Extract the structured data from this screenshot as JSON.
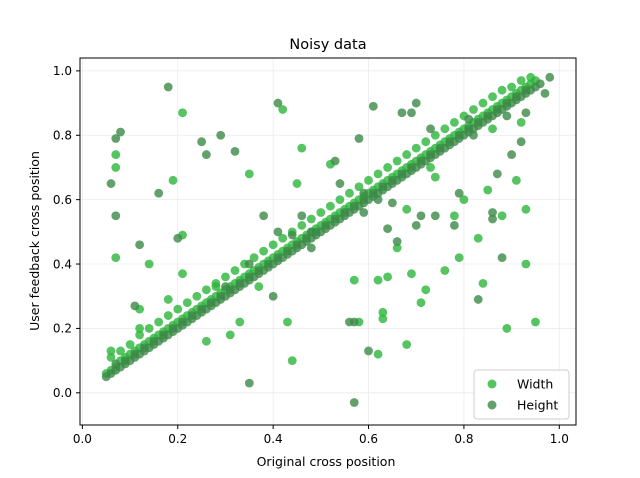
{
  "chart_data": {
    "type": "scatter",
    "title": "Noisy data",
    "xlabel": "Original cross position",
    "ylabel": "User feedback cross position",
    "xlim": [
      -0.005,
      1.035
    ],
    "ylim": [
      -0.1,
      1.04
    ],
    "xticks": [
      0.0,
      0.2,
      0.4,
      0.6,
      0.8,
      1.0
    ],
    "yticks": [
      0.0,
      0.2,
      0.4,
      0.6,
      0.8,
      1.0
    ],
    "xtick_labels": [
      "0.0",
      "0.2",
      "0.4",
      "0.6",
      "0.8",
      "1.0"
    ],
    "ytick_labels": [
      "0.0",
      "0.2",
      "0.4",
      "0.6",
      "0.8",
      "1.0"
    ],
    "grid": true,
    "legend_position": "lower-right",
    "series": [
      {
        "name": "Width",
        "color": "#2ab53a",
        "x": [
          0.05,
          0.06,
          0.07,
          0.08,
          0.09,
          0.1,
          0.11,
          0.12,
          0.13,
          0.14,
          0.15,
          0.16,
          0.17,
          0.18,
          0.19,
          0.2,
          0.21,
          0.22,
          0.23,
          0.24,
          0.25,
          0.26,
          0.27,
          0.28,
          0.29,
          0.3,
          0.31,
          0.32,
          0.33,
          0.34,
          0.35,
          0.36,
          0.37,
          0.38,
          0.39,
          0.4,
          0.41,
          0.42,
          0.43,
          0.44,
          0.45,
          0.46,
          0.47,
          0.48,
          0.49,
          0.5,
          0.51,
          0.52,
          0.53,
          0.54,
          0.55,
          0.56,
          0.57,
          0.58,
          0.59,
          0.6,
          0.61,
          0.62,
          0.63,
          0.64,
          0.65,
          0.66,
          0.67,
          0.68,
          0.69,
          0.7,
          0.71,
          0.72,
          0.73,
          0.74,
          0.75,
          0.76,
          0.77,
          0.78,
          0.79,
          0.8,
          0.81,
          0.82,
          0.83,
          0.84,
          0.85,
          0.86,
          0.87,
          0.88,
          0.89,
          0.9,
          0.91,
          0.92,
          0.93,
          0.94,
          0.95,
          0.06,
          0.08,
          0.1,
          0.12,
          0.14,
          0.16,
          0.18,
          0.2,
          0.22,
          0.24,
          0.26,
          0.28,
          0.3,
          0.32,
          0.34,
          0.36,
          0.38,
          0.4,
          0.42,
          0.44,
          0.46,
          0.48,
          0.5,
          0.52,
          0.54,
          0.56,
          0.58,
          0.6,
          0.62,
          0.64,
          0.66,
          0.68,
          0.7,
          0.72,
          0.74,
          0.76,
          0.78,
          0.8,
          0.82,
          0.84,
          0.86,
          0.88,
          0.9,
          0.92,
          0.94,
          0.07,
          0.21,
          0.07,
          0.19,
          0.42,
          0.46,
          0.35,
          0.07,
          0.14,
          0.18,
          0.33,
          0.44,
          0.21,
          0.28,
          0.43,
          0.31,
          0.12,
          0.06,
          0.21,
          0.26,
          0.37,
          0.12,
          0.45,
          0.52,
          0.62,
          0.66,
          0.71,
          0.76,
          0.79,
          0.83,
          0.88,
          0.84,
          0.89,
          0.93,
          0.91,
          0.95,
          0.93,
          0.58,
          0.57,
          0.62,
          0.68,
          0.72,
          0.64,
          0.69,
          0.63,
          0.63,
          0.68,
          0.78,
          0.8,
          0.73,
          0.74,
          0.86,
          0.92,
          0.85
        ],
        "y": [
          0.06,
          0.07,
          0.08,
          0.1,
          0.11,
          0.12,
          0.13,
          0.14,
          0.15,
          0.16,
          0.17,
          0.18,
          0.19,
          0.2,
          0.21,
          0.22,
          0.23,
          0.24,
          0.25,
          0.26,
          0.27,
          0.28,
          0.29,
          0.3,
          0.31,
          0.32,
          0.33,
          0.34,
          0.35,
          0.36,
          0.37,
          0.38,
          0.39,
          0.4,
          0.41,
          0.42,
          0.43,
          0.44,
          0.45,
          0.46,
          0.47,
          0.48,
          0.49,
          0.5,
          0.51,
          0.52,
          0.53,
          0.54,
          0.55,
          0.56,
          0.57,
          0.58,
          0.59,
          0.6,
          0.61,
          0.62,
          0.63,
          0.64,
          0.65,
          0.66,
          0.67,
          0.68,
          0.69,
          0.7,
          0.71,
          0.72,
          0.73,
          0.74,
          0.75,
          0.76,
          0.77,
          0.78,
          0.79,
          0.8,
          0.81,
          0.82,
          0.83,
          0.84,
          0.85,
          0.86,
          0.87,
          0.88,
          0.89,
          0.9,
          0.91,
          0.92,
          0.93,
          0.94,
          0.95,
          0.96,
          0.97,
          0.11,
          0.13,
          0.15,
          0.18,
          0.2,
          0.22,
          0.24,
          0.26,
          0.28,
          0.3,
          0.32,
          0.34,
          0.36,
          0.38,
          0.4,
          0.42,
          0.44,
          0.46,
          0.48,
          0.5,
          0.52,
          0.54,
          0.56,
          0.58,
          0.6,
          0.62,
          0.64,
          0.66,
          0.68,
          0.7,
          0.72,
          0.74,
          0.76,
          0.78,
          0.8,
          0.82,
          0.84,
          0.86,
          0.88,
          0.9,
          0.92,
          0.94,
          0.95,
          0.97,
          0.98,
          0.7,
          0.87,
          0.74,
          0.66,
          0.88,
          0.76,
          0.68,
          0.42,
          0.4,
          0.29,
          0.22,
          0.1,
          0.49,
          0.33,
          0.22,
          0.18,
          0.26,
          0.13,
          0.37,
          0.16,
          0.33,
          0.2,
          0.65,
          0.71,
          0.35,
          0.45,
          0.28,
          0.38,
          0.42,
          0.48,
          0.55,
          0.34,
          0.2,
          0.57,
          0.66,
          0.22,
          0.4,
          0.22,
          0.35,
          0.12,
          0.15,
          0.32,
          0.36,
          0.37,
          0.25,
          0.23,
          0.57,
          0.55,
          0.6,
          0.7,
          0.67,
          0.82,
          0.84,
          0.63
        ]
      },
      {
        "name": "Height",
        "color": "#3c8a47",
        "x": [
          0.05,
          0.06,
          0.07,
          0.08,
          0.09,
          0.1,
          0.11,
          0.12,
          0.13,
          0.14,
          0.15,
          0.16,
          0.17,
          0.18,
          0.19,
          0.2,
          0.21,
          0.22,
          0.23,
          0.24,
          0.25,
          0.26,
          0.27,
          0.28,
          0.29,
          0.3,
          0.31,
          0.32,
          0.33,
          0.34,
          0.35,
          0.36,
          0.37,
          0.38,
          0.39,
          0.4,
          0.41,
          0.42,
          0.43,
          0.44,
          0.45,
          0.46,
          0.47,
          0.48,
          0.49,
          0.5,
          0.51,
          0.52,
          0.53,
          0.54,
          0.55,
          0.56,
          0.57,
          0.58,
          0.59,
          0.6,
          0.61,
          0.62,
          0.63,
          0.64,
          0.65,
          0.66,
          0.67,
          0.68,
          0.69,
          0.7,
          0.71,
          0.72,
          0.73,
          0.74,
          0.75,
          0.76,
          0.77,
          0.78,
          0.79,
          0.8,
          0.81,
          0.82,
          0.83,
          0.84,
          0.85,
          0.86,
          0.87,
          0.88,
          0.89,
          0.9,
          0.91,
          0.92,
          0.93,
          0.94,
          0.95,
          0.07,
          0.09,
          0.11,
          0.13,
          0.15,
          0.17,
          0.19,
          0.21,
          0.23,
          0.25,
          0.27,
          0.29,
          0.31,
          0.33,
          0.35,
          0.37,
          0.39,
          0.41,
          0.43,
          0.45,
          0.47,
          0.49,
          0.51,
          0.53,
          0.55,
          0.57,
          0.59,
          0.61,
          0.63,
          0.65,
          0.67,
          0.69,
          0.71,
          0.73,
          0.75,
          0.77,
          0.79,
          0.81,
          0.83,
          0.85,
          0.87,
          0.89,
          0.91,
          0.93,
          0.06,
          0.07,
          0.08,
          0.07,
          0.11,
          0.12,
          0.16,
          0.18,
          0.2,
          0.25,
          0.26,
          0.29,
          0.32,
          0.35,
          0.38,
          0.41,
          0.44,
          0.48,
          0.53,
          0.56,
          0.57,
          0.57,
          0.58,
          0.59,
          0.61,
          0.6,
          0.62,
          0.64,
          0.65,
          0.66,
          0.67,
          0.69,
          0.7,
          0.71,
          0.73,
          0.74,
          0.78,
          0.79,
          0.81,
          0.82,
          0.83,
          0.86,
          0.87,
          0.88,
          0.9,
          0.93,
          0.96,
          0.98,
          0.97,
          0.7,
          0.89,
          0.92,
          0.3,
          0.41,
          0.4,
          0.59,
          0.86,
          0.48,
          0.54,
          0.46,
          0.35
        ],
        "y": [
          0.05,
          0.06,
          0.07,
          0.08,
          0.09,
          0.1,
          0.11,
          0.12,
          0.13,
          0.14,
          0.15,
          0.16,
          0.17,
          0.18,
          0.19,
          0.2,
          0.21,
          0.22,
          0.23,
          0.24,
          0.25,
          0.26,
          0.27,
          0.28,
          0.29,
          0.3,
          0.31,
          0.32,
          0.33,
          0.34,
          0.35,
          0.36,
          0.37,
          0.38,
          0.39,
          0.4,
          0.41,
          0.42,
          0.43,
          0.44,
          0.45,
          0.46,
          0.47,
          0.48,
          0.49,
          0.5,
          0.51,
          0.52,
          0.53,
          0.54,
          0.55,
          0.56,
          0.57,
          0.58,
          0.59,
          0.6,
          0.61,
          0.62,
          0.63,
          0.64,
          0.65,
          0.66,
          0.67,
          0.68,
          0.69,
          0.7,
          0.71,
          0.72,
          0.73,
          0.74,
          0.75,
          0.76,
          0.77,
          0.78,
          0.79,
          0.8,
          0.81,
          0.82,
          0.83,
          0.84,
          0.85,
          0.86,
          0.87,
          0.88,
          0.89,
          0.9,
          0.91,
          0.92,
          0.93,
          0.94,
          0.95,
          0.09,
          0.1,
          0.12,
          0.14,
          0.16,
          0.18,
          0.2,
          0.22,
          0.24,
          0.26,
          0.28,
          0.3,
          0.32,
          0.34,
          0.36,
          0.38,
          0.4,
          0.42,
          0.44,
          0.46,
          0.48,
          0.5,
          0.52,
          0.54,
          0.56,
          0.58,
          0.6,
          0.62,
          0.64,
          0.66,
          0.68,
          0.7,
          0.72,
          0.74,
          0.76,
          0.78,
          0.8,
          0.82,
          0.84,
          0.86,
          0.88,
          0.9,
          0.92,
          0.94,
          0.65,
          0.55,
          0.81,
          0.79,
          0.27,
          0.46,
          0.62,
          0.95,
          0.48,
          0.78,
          0.74,
          0.8,
          0.75,
          0.03,
          0.55,
          0.9,
          0.49,
          0.45,
          0.72,
          0.22,
          -0.03,
          0.22,
          0.79,
          0.62,
          0.89,
          0.13,
          0.6,
          0.51,
          0.59,
          0.47,
          0.87,
          0.87,
          0.9,
          0.55,
          0.82,
          0.55,
          0.52,
          0.62,
          0.85,
          0.8,
          0.29,
          0.54,
          0.68,
          0.42,
          0.74,
          0.87,
          0.96,
          0.98,
          0.93,
          0.52,
          0.86,
          0.78,
          0.33,
          0.5,
          0.3,
          0.56,
          0.56,
          0.5,
          0.65,
          0.55,
          0.4
        ]
      }
    ]
  }
}
